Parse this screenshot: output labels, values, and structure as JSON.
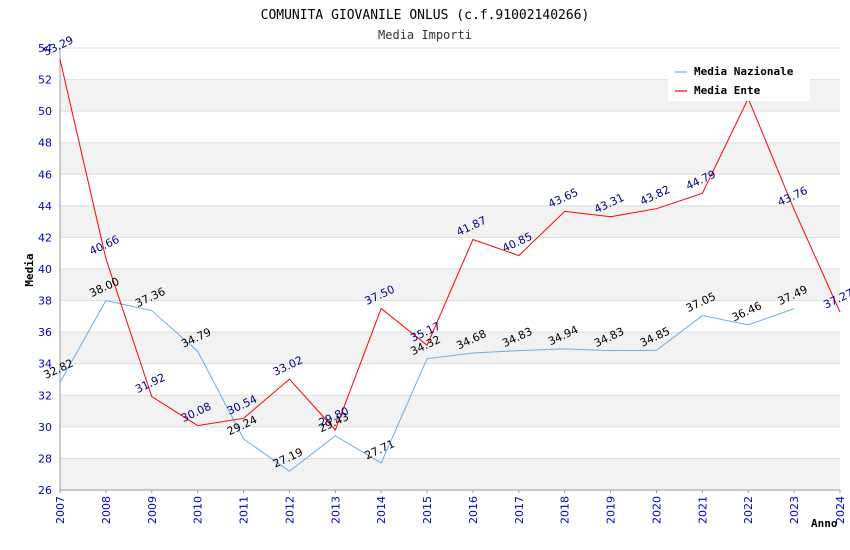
{
  "chart_data": {
    "type": "line",
    "title": "COMUNITA GIOVANILE ONLUS (c.f.91002140266)",
    "subtitle": "Media Importi",
    "xlabel": "Anno",
    "ylabel": "Media",
    "ylim": [
      26,
      54
    ],
    "yticks": [
      "26",
      "28",
      "30",
      "32",
      "34",
      "36",
      "38",
      "40",
      "42",
      "44",
      "46",
      "48",
      "50",
      "52",
      "54"
    ],
    "categories": [
      "2007",
      "2008",
      "2009",
      "2010",
      "2011",
      "2012",
      "2013",
      "2014",
      "2015",
      "2016",
      "2017",
      "2018",
      "2019",
      "2020",
      "2021",
      "2022",
      "2023",
      "2024"
    ],
    "grid": true,
    "legend_position": "top-right",
    "series": [
      {
        "name": "Media Nazionale",
        "color": "#6aaee8",
        "values": [
          32.82,
          38.0,
          37.36,
          34.79,
          29.24,
          27.19,
          29.43,
          27.71,
          34.32,
          34.68,
          34.83,
          34.94,
          34.83,
          34.85,
          37.05,
          36.46,
          37.49,
          null
        ],
        "labels": [
          "32.82",
          "38.00",
          "37.36",
          "34.79",
          "29.24",
          "27.19",
          "29.43",
          "27.71",
          "34.32",
          "34.68",
          "34.83",
          "34.94",
          "34.83",
          "34.85",
          "37.05",
          "36.46",
          "37.49",
          ""
        ]
      },
      {
        "name": "Media Ente",
        "color": "#ff0000",
        "values": [
          53.29,
          40.66,
          31.92,
          30.08,
          30.54,
          33.02,
          29.8,
          37.5,
          35.17,
          41.87,
          40.85,
          43.65,
          43.31,
          43.82,
          44.79,
          50.8,
          43.76,
          37.27
        ],
        "labels": [
          "53.29",
          "40.66",
          "31.92",
          "30.08",
          "30.54",
          "33.02",
          "29.80",
          "37.50",
          "35.17",
          "41.87",
          "40.85",
          "43.65",
          "43.31",
          "43.82",
          "44.79",
          "",
          "43.76",
          "37.27"
        ]
      }
    ]
  }
}
